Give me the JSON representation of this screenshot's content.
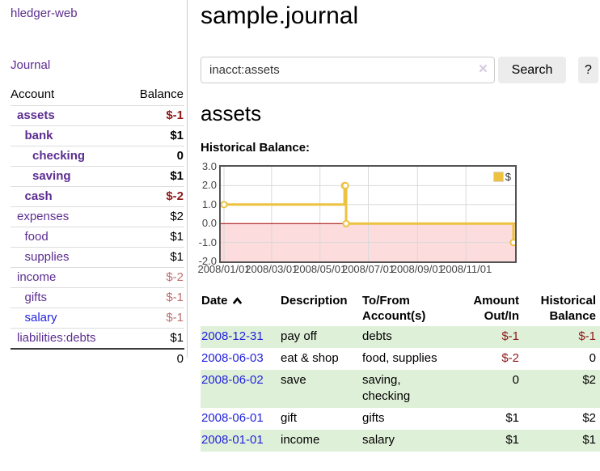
{
  "colors": {
    "link_purple": "#5c2d91",
    "link_blue": "#2323dd",
    "negative_strong": "#8e1919",
    "negative_soft": "#bd6f6f",
    "row_stripe_green": "#dff0d8",
    "chart_line": "#edc240",
    "chart_negative_fill": "#fcdcdc",
    "chart_zero_line": "#a00000",
    "chart_border": "#545454",
    "grid_line": "#d9d9d9"
  },
  "brand": {
    "label": "hledger-web"
  },
  "nav": {
    "journal": "Journal"
  },
  "sidebar": {
    "headers": {
      "account": "Account",
      "balance": "Balance"
    },
    "rows": [
      {
        "name": "assets",
        "balance": "$-1",
        "indent": 1,
        "in_acct": true,
        "name_color": "purple",
        "balance_class": "neg-strong"
      },
      {
        "name": "bank",
        "balance": "$1",
        "indent": 2,
        "in_acct": true,
        "name_color": "purple",
        "balance_class": ""
      },
      {
        "name": "checking",
        "balance": "0",
        "indent": 3,
        "in_acct": true,
        "name_color": "purple",
        "balance_class": ""
      },
      {
        "name": "saving",
        "balance": "$1",
        "indent": 3,
        "in_acct": true,
        "name_color": "purple",
        "balance_class": ""
      },
      {
        "name": "cash",
        "balance": "$-2",
        "indent": 2,
        "in_acct": true,
        "name_color": "purple",
        "balance_class": "neg-strong"
      },
      {
        "name": "expenses",
        "balance": "$2",
        "indent": 1,
        "in_acct": false,
        "name_color": "purple",
        "balance_class": ""
      },
      {
        "name": "food",
        "balance": "$1",
        "indent": 2,
        "in_acct": false,
        "name_color": "purple",
        "balance_class": ""
      },
      {
        "name": "supplies",
        "balance": "$1",
        "indent": 2,
        "in_acct": false,
        "name_color": "purple",
        "balance_class": ""
      },
      {
        "name": "income",
        "balance": "$-2",
        "indent": 1,
        "in_acct": false,
        "name_color": "purple",
        "balance_class": "neg-soft"
      },
      {
        "name": "gifts",
        "balance": "$-1",
        "indent": 2,
        "in_acct": false,
        "name_color": "purple",
        "balance_class": "neg-soft"
      },
      {
        "name": "salary",
        "balance": "$-1",
        "indent": 2,
        "in_acct": false,
        "name_color": "blue",
        "balance_class": "neg-soft"
      },
      {
        "name": "liabilities:debts",
        "balance": "$1",
        "indent": 1,
        "in_acct": false,
        "name_color": "purple",
        "balance_class": ""
      }
    ],
    "total": "0"
  },
  "header": {
    "title": "sample.journal"
  },
  "search": {
    "value": "inacct:assets",
    "clear_icon": "×",
    "search_label": "Search",
    "help_label": "?"
  },
  "account_page": {
    "heading": "assets",
    "chart_title": "Historical Balance:"
  },
  "chart_data": {
    "type": "line",
    "step": true,
    "title": "Historical Balance:",
    "series": [
      {
        "name": "$",
        "points": [
          [
            "2008-01-01",
            1
          ],
          [
            "2008-06-01",
            2
          ],
          [
            "2008-06-02",
            2
          ],
          [
            "2008-06-03",
            0
          ],
          [
            "2008-12-31",
            -1
          ]
        ]
      }
    ],
    "x_range": [
      "2008-01-01",
      "2008-12-31"
    ],
    "x_tick_labels": [
      "2008/01/01",
      "2008/03/01",
      "2008/05/01",
      "2008/07/01",
      "2008/09/01",
      "2008/11/01"
    ],
    "y_ticks": [
      3.0,
      2.0,
      1.0,
      0.0,
      -1.0,
      -2.0
    ],
    "ylim": [
      -2,
      3
    ],
    "legend": {
      "label": "$",
      "position": "top-right"
    },
    "negative_region_shaded": true,
    "grid": true
  },
  "register": {
    "headers": {
      "date": "Date",
      "description": "Description",
      "accounts": "To/From Account(s)",
      "amount": "Amount Out/In",
      "balance": "Historical Balance"
    },
    "rows": [
      {
        "date": "2008-12-31",
        "description": "pay off",
        "accounts": "debts",
        "amount": "$-1",
        "amount_neg": true,
        "balance": "$-1",
        "balance_neg": true
      },
      {
        "date": "2008-06-03",
        "description": "eat & shop",
        "accounts": "food, supplies",
        "amount": "$-2",
        "amount_neg": true,
        "balance": "0",
        "balance_neg": false
      },
      {
        "date": "2008-06-02",
        "description": "save",
        "accounts": "saving, checking",
        "amount": "0",
        "amount_neg": false,
        "balance": "$2",
        "balance_neg": false
      },
      {
        "date": "2008-06-01",
        "description": "gift",
        "accounts": "gifts",
        "amount": "$1",
        "amount_neg": false,
        "balance": "$2",
        "balance_neg": false
      },
      {
        "date": "2008-01-01",
        "description": "income",
        "accounts": "salary",
        "amount": "$1",
        "amount_neg": false,
        "balance": "$1",
        "balance_neg": false
      }
    ]
  }
}
